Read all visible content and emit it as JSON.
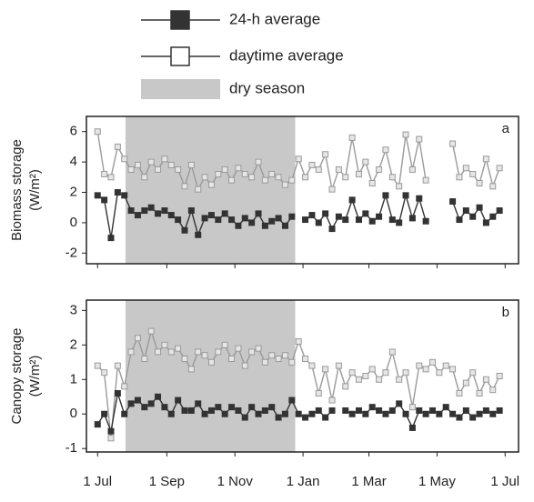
{
  "chart_data": [
    {
      "type": "line",
      "panel_label": "a",
      "ylabel": [
        "Biomass storage",
        "(W/m²)"
      ],
      "shade": {
        "label": "dry season",
        "range": [
          25,
          177
        ],
        "color": "#c8c8c8"
      },
      "x": [
        0,
        6,
        12,
        18,
        24,
        30,
        36,
        42,
        48,
        54,
        60,
        66,
        72,
        78,
        84,
        90,
        96,
        102,
        108,
        114,
        120,
        126,
        132,
        138,
        144,
        150,
        156,
        162,
        168,
        174,
        180,
        186,
        192,
        198,
        204,
        210,
        216,
        222,
        228,
        234,
        240,
        246,
        252,
        258,
        264,
        270,
        276,
        282,
        288,
        294,
        300,
        306,
        312,
        318,
        324,
        330,
        336,
        342,
        348,
        354,
        360
      ],
      "ylim": [
        -2.7,
        7
      ],
      "yticks": [
        -2,
        0,
        2,
        4,
        6
      ],
      "series": [
        {
          "name": "24-h average",
          "color": "#333333",
          "values": [
            1.8,
            1.5,
            -1.0,
            2.0,
            1.8,
            0.8,
            0.5,
            0.8,
            1.0,
            0.6,
            0.8,
            0.5,
            0.2,
            -0.5,
            0.8,
            -0.8,
            0.3,
            0.5,
            0.2,
            0.6,
            0.2,
            -0.2,
            0.3,
            0.0,
            0.6,
            -0.2,
            0.1,
            0.3,
            -0.2,
            0.4,
            null,
            0.2,
            0.5,
            0.0,
            0.6,
            -0.4,
            0.4,
            0.2,
            1.5,
            0.2,
            0.6,
            0.1,
            0.4,
            1.8,
            0.2,
            0.0,
            1.8,
            0.3,
            1.6,
            0.1,
            null,
            null,
            null,
            1.4,
            0.2,
            0.8,
            0.4,
            1.0,
            0.0,
            0.4,
            0.8
          ]
        },
        {
          "name": "daytime average",
          "color": "#9a9a9a",
          "values": [
            6.0,
            3.2,
            3.0,
            5.0,
            4.2,
            3.5,
            3.8,
            3.0,
            4.0,
            3.5,
            4.2,
            3.8,
            3.5,
            2.4,
            3.8,
            2.2,
            3.0,
            2.5,
            3.2,
            3.5,
            2.8,
            3.6,
            3.2,
            3.0,
            4.0,
            2.8,
            3.2,
            3.0,
            2.5,
            2.8,
            4.2,
            3.0,
            3.8,
            3.5,
            4.5,
            2.2,
            3.5,
            3.0,
            5.6,
            3.2,
            4.0,
            2.6,
            3.5,
            4.8,
            3.0,
            2.4,
            5.8,
            3.5,
            5.5,
            2.8,
            null,
            null,
            null,
            5.2,
            3.0,
            3.6,
            3.2,
            2.6,
            4.2,
            2.4,
            3.6
          ]
        }
      ]
    },
    {
      "type": "line",
      "panel_label": "b",
      "ylabel": [
        "Canopy storage",
        "(W/m²)"
      ],
      "shade": {
        "range": [
          25,
          177
        ],
        "color": "#c8c8c8"
      },
      "x": [
        0,
        6,
        12,
        18,
        24,
        30,
        36,
        42,
        48,
        54,
        60,
        66,
        72,
        78,
        84,
        90,
        96,
        102,
        108,
        114,
        120,
        126,
        132,
        138,
        144,
        150,
        156,
        162,
        168,
        174,
        180,
        186,
        192,
        198,
        204,
        210,
        216,
        222,
        228,
        234,
        240,
        246,
        252,
        258,
        264,
        270,
        276,
        282,
        288,
        294,
        300,
        306,
        312,
        318,
        324,
        330,
        336,
        342,
        348,
        354,
        360
      ],
      "xlim": [
        -10,
        377
      ],
      "xticks": [
        {
          "value": 0,
          "label": "1 Jul"
        },
        {
          "value": 62,
          "label": "1 Sep"
        },
        {
          "value": 123,
          "label": "1 Nov"
        },
        {
          "value": 184,
          "label": "1 Jan"
        },
        {
          "value": 243,
          "label": "1 Mar"
        },
        {
          "value": 304,
          "label": "1 May"
        },
        {
          "value": 365,
          "label": "1 Jul"
        }
      ],
      "ylim": [
        -1.1,
        3.3
      ],
      "yticks": [
        -1,
        0,
        1,
        2,
        3
      ],
      "series": [
        {
          "color": "#333333",
          "values": [
            -0.3,
            0.0,
            -0.5,
            0.6,
            0.0,
            0.3,
            0.4,
            0.2,
            0.3,
            0.5,
            0.2,
            0.0,
            0.4,
            0.1,
            0.1,
            0.3,
            0.0,
            0.1,
            0.2,
            0.0,
            0.2,
            0.1,
            -0.1,
            0.2,
            0.0,
            0.1,
            0.2,
            -0.1,
            0.0,
            0.4,
            0.0,
            -0.1,
            0.0,
            0.1,
            -0.1,
            0.1,
            null,
            0.1,
            0.0,
            0.1,
            0.0,
            0.2,
            0.1,
            0.0,
            0.1,
            0.3,
            0.0,
            -0.4,
            0.1,
            0.0,
            0.1,
            0.0,
            0.2,
            0.0,
            -0.1,
            0.1,
            -0.1,
            0.0,
            0.1,
            0.0,
            0.1
          ]
        },
        {
          "color": "#9a9a9a",
          "values": [
            1.4,
            1.2,
            -0.7,
            1.4,
            0.8,
            1.8,
            2.2,
            1.6,
            2.4,
            1.8,
            2.0,
            1.8,
            1.9,
            1.6,
            1.3,
            1.8,
            1.7,
            1.5,
            1.8,
            2.0,
            1.6,
            1.9,
            1.4,
            1.8,
            1.9,
            1.5,
            1.7,
            1.6,
            1.7,
            1.5,
            2.1,
            1.6,
            1.4,
            0.6,
            1.3,
            0.4,
            1.4,
            0.8,
            1.2,
            1.0,
            1.1,
            1.3,
            1.0,
            1.2,
            1.8,
            1.0,
            1.2,
            0.2,
            1.4,
            1.3,
            1.5,
            1.2,
            1.4,
            1.3,
            0.6,
            0.9,
            1.2,
            0.6,
            1.0,
            0.7,
            1.1
          ]
        }
      ]
    }
  ]
}
